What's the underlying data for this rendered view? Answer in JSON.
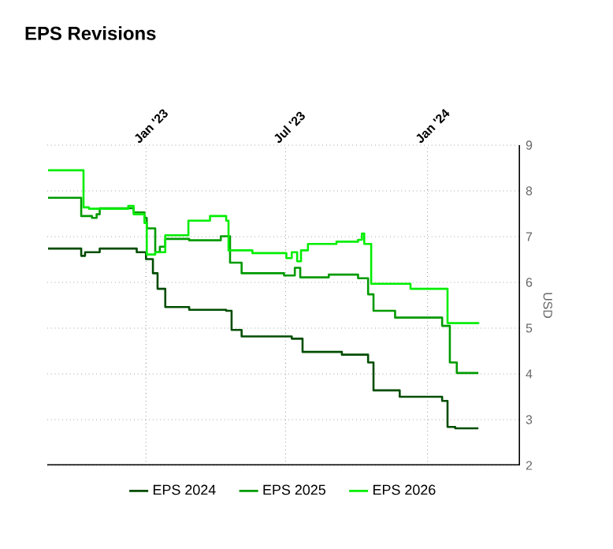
{
  "chart_data": {
    "type": "step",
    "title": "EPS Revisions",
    "ylabel": "USD",
    "xlim": [
      "2022-08-26",
      "2024-04-30"
    ],
    "ylim": [
      2,
      9
    ],
    "yticks": [
      2,
      3,
      4,
      5,
      6,
      7,
      8,
      9
    ],
    "xticks": [
      {
        "value": "2023-01-01",
        "label": "Jan '23"
      },
      {
        "value": "2023-07-01",
        "label": "Jul '23"
      },
      {
        "value": "2024-01-01",
        "label": "Jan '24"
      }
    ],
    "grid": true,
    "legend": "bottom",
    "marker": "none",
    "line_style": "solid",
    "series": [
      {
        "name": "EPS 2024",
        "color": "#004d00",
        "x": [
          "2022-08-27",
          "2022-10-09",
          "2022-10-14",
          "2022-11-02",
          "2022-12-20",
          "2023-01-01",
          "2023-01-10",
          "2023-01-16",
          "2023-01-26",
          "2023-02-26",
          "2023-04-15",
          "2023-04-22",
          "2023-05-05",
          "2023-07-09",
          "2023-07-23",
          "2023-09-12",
          "2023-10-16",
          "2023-10-23",
          "2023-11-26",
          "2024-01-20",
          "2024-01-27",
          "2024-02-06",
          "2024-03-07"
        ],
        "values": [
          6.74,
          6.58,
          6.66,
          6.74,
          6.66,
          6.51,
          6.2,
          5.86,
          5.46,
          5.4,
          5.38,
          4.96,
          4.82,
          4.77,
          4.48,
          4.42,
          4.25,
          3.64,
          3.5,
          3.41,
          2.84,
          2.81,
          2.81
        ]
      },
      {
        "name": "EPS 2025",
        "color": "#009a00",
        "x": [
          "2022-08-27",
          "2022-10-09",
          "2022-10-23",
          "2022-10-29",
          "2022-11-02",
          "2022-12-16",
          "2022-12-30",
          "2023-01-02",
          "2023-01-13",
          "2023-01-19",
          "2023-01-26",
          "2023-02-26",
          "2023-04-08",
          "2023-04-20",
          "2023-05-05",
          "2023-06-29",
          "2023-07-13",
          "2023-07-20",
          "2023-08-26",
          "2023-10-03",
          "2023-10-16",
          "2023-10-23",
          "2023-11-20",
          "2024-01-20",
          "2024-01-30",
          "2024-02-08",
          "2024-03-07"
        ],
        "values": [
          7.85,
          7.45,
          7.41,
          7.49,
          7.62,
          7.53,
          7.41,
          7.18,
          6.66,
          6.78,
          6.95,
          6.92,
          7.01,
          6.43,
          6.2,
          6.15,
          6.32,
          6.11,
          6.17,
          6.09,
          5.74,
          5.38,
          5.23,
          5.05,
          4.25,
          4.02,
          4.02
        ]
      },
      {
        "name": "EPS 2026",
        "color": "#00ee00",
        "x": [
          "2022-08-27",
          "2022-10-12",
          "2022-10-19",
          "2022-12-09",
          "2022-12-16",
          "2022-12-30",
          "2023-01-02",
          "2023-01-13",
          "2023-01-26",
          "2023-02-25",
          "2023-03-25",
          "2023-04-15",
          "2023-04-18",
          "2023-05-19",
          "2023-07-02",
          "2023-07-09",
          "2023-07-16",
          "2023-07-21",
          "2023-07-30",
          "2023-09-05",
          "2023-10-03",
          "2023-10-08",
          "2023-10-11",
          "2023-10-20",
          "2023-12-10",
          "2024-01-27",
          "2024-03-07"
        ],
        "values": [
          8.45,
          7.64,
          7.61,
          7.67,
          7.49,
          7.3,
          6.61,
          6.66,
          7.03,
          7.35,
          7.45,
          7.35,
          6.7,
          6.64,
          6.53,
          6.66,
          6.46,
          6.7,
          6.84,
          6.89,
          6.93,
          7.07,
          6.84,
          5.97,
          5.86,
          5.11,
          5.13
        ]
      }
    ]
  }
}
